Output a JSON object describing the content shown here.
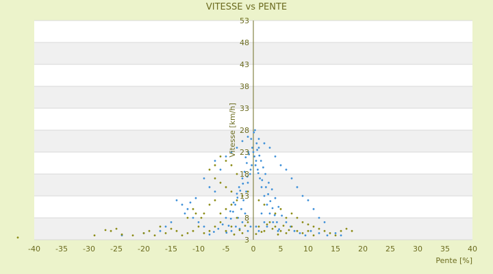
{
  "chart_data": {
    "type": "scatter",
    "title": "VITESSE vs PENTE",
    "xlabel": "Pente [%]",
    "ylabel": "Vitesse [km/h]",
    "xlim": [
      -40,
      40
    ],
    "ylim": [
      3,
      53
    ],
    "xticks": [
      -40,
      -35,
      -30,
      -25,
      -20,
      -15,
      -10,
      -5,
      0,
      5,
      10,
      15,
      20,
      25,
      30,
      35,
      40
    ],
    "yticks": [
      3,
      8,
      13,
      18,
      23,
      28,
      33,
      38,
      43,
      48,
      53
    ],
    "grid": true,
    "series": [
      {
        "color": "#3d8fd8",
        "points": [
          [
            0,
            23
          ],
          [
            0.2,
            22
          ],
          [
            0.5,
            21
          ],
          [
            -0.3,
            20
          ],
          [
            0.8,
            19
          ],
          [
            -0.6,
            18
          ],
          [
            1.2,
            17
          ],
          [
            -1.0,
            16
          ],
          [
            1.5,
            15
          ],
          [
            -1.3,
            14
          ],
          [
            2.0,
            13
          ],
          [
            -1.8,
            12
          ],
          [
            2.5,
            11
          ],
          [
            -2.2,
            10
          ],
          [
            3.0,
            9
          ],
          [
            -2.8,
            8
          ],
          [
            3.6,
            7
          ],
          [
            -3.2,
            6
          ],
          [
            4.5,
            5
          ],
          [
            -4.0,
            5
          ],
          [
            0.1,
            27.5
          ],
          [
            -0.4,
            26
          ],
          [
            0.6,
            25
          ],
          [
            1.0,
            24
          ],
          [
            -0.8,
            22.5
          ],
          [
            1.4,
            21
          ],
          [
            -1.2,
            20.5
          ],
          [
            1.8,
            19.5
          ],
          [
            -1.6,
            18.5
          ],
          [
            2.2,
            18
          ],
          [
            -2.0,
            17
          ],
          [
            2.8,
            16
          ],
          [
            -2.6,
            15
          ],
          [
            3.4,
            14.5
          ],
          [
            -3.0,
            13.5
          ],
          [
            4.0,
            12.5
          ],
          [
            -3.6,
            11.5
          ],
          [
            4.6,
            10.5
          ],
          [
            -4.2,
            9.5
          ],
          [
            5.2,
            8.5
          ],
          [
            -5.0,
            8
          ],
          [
            6.0,
            7
          ],
          [
            -5.6,
            6.5
          ],
          [
            6.8,
            6
          ],
          [
            -6.4,
            5.5
          ],
          [
            7.5,
            5
          ],
          [
            -7.2,
            4.8
          ],
          [
            8.5,
            4.5
          ],
          [
            -8.0,
            4.2
          ],
          [
            9.5,
            4
          ],
          [
            10.5,
            5
          ],
          [
            12,
            4.5
          ],
          [
            13.5,
            4
          ],
          [
            15,
            4.5
          ],
          [
            16,
            4
          ],
          [
            -9,
            6
          ],
          [
            -10,
            7
          ],
          [
            -11,
            8
          ],
          [
            -12,
            10
          ],
          [
            -13,
            11
          ],
          [
            -14,
            12
          ],
          [
            -7,
            14
          ],
          [
            -8,
            15
          ],
          [
            -9,
            17
          ],
          [
            -6,
            19
          ],
          [
            -7,
            21
          ],
          [
            -5,
            22
          ],
          [
            -4,
            23
          ],
          [
            -3,
            24
          ],
          [
            5,
            20
          ],
          [
            6,
            19
          ],
          [
            7,
            17
          ],
          [
            8,
            15
          ],
          [
            9,
            13
          ],
          [
            10,
            12
          ],
          [
            11,
            10
          ],
          [
            12,
            8
          ],
          [
            13,
            7
          ],
          [
            4,
            22
          ],
          [
            3,
            24
          ],
          [
            2,
            25
          ],
          [
            1,
            26
          ],
          [
            -1,
            26.5
          ],
          [
            -2,
            25.5
          ],
          [
            0.3,
            28
          ],
          [
            -0.2,
            24
          ],
          [
            0.7,
            23.5
          ],
          [
            -0.9,
            23
          ],
          [
            1.1,
            22.2
          ],
          [
            -1.4,
            21.8
          ],
          [
            0.4,
            20
          ],
          [
            -0.5,
            19
          ],
          [
            0.9,
            18.2
          ],
          [
            -1.1,
            17.4
          ],
          [
            1.6,
            16.6
          ],
          [
            -1.9,
            15.8
          ],
          [
            2.3,
            15
          ],
          [
            -2.4,
            14.2
          ],
          [
            2.7,
            13.4
          ],
          [
            -2.9,
            12.6
          ],
          [
            3.1,
            11.8
          ],
          [
            -3.3,
            11
          ],
          [
            3.5,
            10.2
          ],
          [
            -3.7,
            9.4
          ],
          [
            3.9,
            8.6
          ],
          [
            -4.1,
            7.8
          ],
          [
            4.3,
            7
          ],
          [
            -4.5,
            6.2
          ],
          [
            4.7,
            5.4
          ],
          [
            -4.9,
            4.6
          ],
          [
            1.5,
            9
          ],
          [
            -1.5,
            9
          ],
          [
            2,
            7
          ],
          [
            -2,
            7
          ],
          [
            0.5,
            6
          ],
          [
            -0.5,
            6
          ],
          [
            1,
            5
          ],
          [
            -1,
            5
          ],
          [
            2.5,
            6
          ],
          [
            -2.5,
            5.5
          ],
          [
            -10.5,
            12.5
          ],
          [
            -11.5,
            11.5
          ],
          [
            -12.5,
            9
          ],
          [
            -15,
            7
          ],
          [
            -16,
            6
          ],
          [
            -17,
            5
          ],
          [
            -20,
            4.5
          ],
          [
            -24,
            4
          ]
        ]
      },
      {
        "color": "#8b8b15",
        "points": [
          [
            -5,
            5
          ],
          [
            -4,
            6
          ],
          [
            -6,
            7
          ],
          [
            -3,
            8
          ],
          [
            -7,
            6
          ],
          [
            -2,
            4.5
          ],
          [
            -8,
            5
          ],
          [
            -1,
            7
          ],
          [
            -9,
            4.5
          ],
          [
            1,
            6
          ],
          [
            2,
            5
          ],
          [
            3,
            7
          ],
          [
            4,
            6
          ],
          [
            5,
            5
          ],
          [
            6,
            4.5
          ],
          [
            7,
            6
          ],
          [
            8,
            5
          ],
          [
            9,
            4.5
          ],
          [
            10,
            5
          ],
          [
            11,
            4
          ],
          [
            -10,
            6
          ],
          [
            -11,
            5
          ],
          [
            -12,
            4.5
          ],
          [
            -13,
            4
          ],
          [
            -14,
            5
          ],
          [
            -15,
            5.5
          ],
          [
            -16,
            4.5
          ],
          [
            -17,
            6
          ],
          [
            -18,
            4
          ],
          [
            -19,
            5
          ],
          [
            -20,
            4.5
          ],
          [
            -22,
            4
          ],
          [
            -24,
            4.2
          ],
          [
            -25,
            5.5
          ],
          [
            -26,
            5
          ],
          [
            -27,
            5.2
          ],
          [
            -29,
            4
          ],
          [
            -43,
            3.5
          ],
          [
            13,
            5
          ],
          [
            14,
            4.5
          ],
          [
            15,
            4
          ],
          [
            16,
            5
          ],
          [
            17,
            5.5
          ],
          [
            18,
            5
          ],
          [
            -6,
            9
          ],
          [
            -5,
            10
          ],
          [
            -4,
            11
          ],
          [
            -7,
            12
          ],
          [
            -8,
            11
          ],
          [
            -9,
            9
          ],
          [
            4,
            9
          ],
          [
            5,
            10
          ],
          [
            6,
            8
          ],
          [
            7,
            9
          ],
          [
            8,
            8
          ],
          [
            -3,
            12
          ],
          [
            -2,
            13
          ],
          [
            -1,
            14
          ],
          [
            1,
            12
          ],
          [
            2,
            11
          ],
          [
            -4,
            20
          ],
          [
            -5,
            21
          ],
          [
            -6,
            22
          ],
          [
            -7,
            20
          ],
          [
            -8,
            19
          ],
          [
            -3,
            18
          ],
          [
            -6,
            16
          ],
          [
            -7,
            17
          ],
          [
            -5,
            15
          ],
          [
            -4,
            14
          ],
          [
            -3.5,
            4.2
          ],
          [
            -2.5,
            5.2
          ],
          [
            -1.5,
            6.2
          ],
          [
            0.5,
            4.3
          ],
          [
            1.5,
            4.8
          ],
          [
            2.5,
            6.5
          ],
          [
            3.5,
            5.5
          ],
          [
            4.5,
            4.2
          ],
          [
            5.5,
            6.2
          ],
          [
            6.5,
            5.2
          ],
          [
            -9.5,
            8
          ],
          [
            -10.5,
            9
          ],
          [
            -11,
            10
          ],
          [
            -12,
            8
          ],
          [
            9,
            7
          ],
          [
            10,
            6.5
          ],
          [
            11,
            6
          ],
          [
            12,
            5.5
          ]
        ]
      }
    ]
  }
}
